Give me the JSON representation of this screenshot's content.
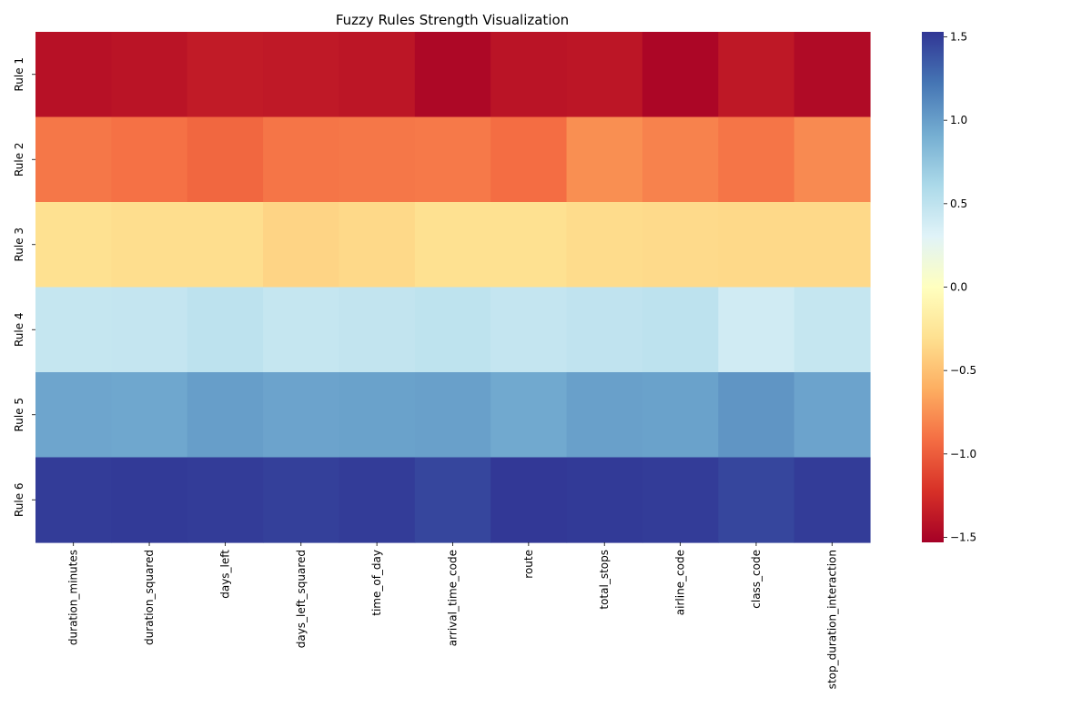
{
  "chart_data": {
    "type": "heatmap",
    "title": "Fuzzy Rules Strength Visualization",
    "xlabel": "",
    "ylabel": "",
    "columns": [
      "duration_minutes",
      "duration_squared",
      "days_left",
      "days_left_squared",
      "time_of_day",
      "arrival_time_code",
      "route",
      "total_stops",
      "airline_code",
      "class_code",
      "stop_duration_interaction"
    ],
    "rows": [
      "Rule 1",
      "Rule 2",
      "Rule 3",
      "Rule 4",
      "Rule 5",
      "Rule 6"
    ],
    "values": [
      [
        -1.42,
        -1.4,
        -1.36,
        -1.37,
        -1.39,
        -1.48,
        -1.4,
        -1.39,
        -1.49,
        -1.38,
        -1.46
      ],
      [
        -0.87,
        -0.9,
        -0.95,
        -0.88,
        -0.87,
        -0.86,
        -0.92,
        -0.76,
        -0.82,
        -0.88,
        -0.78
      ],
      [
        -0.3,
        -0.32,
        -0.32,
        -0.38,
        -0.35,
        -0.3,
        -0.3,
        -0.33,
        -0.34,
        -0.35,
        -0.35
      ],
      [
        0.46,
        0.47,
        0.51,
        0.46,
        0.48,
        0.5,
        0.47,
        0.49,
        0.51,
        0.4,
        0.46
      ],
      [
        0.96,
        0.95,
        1.0,
        0.97,
        0.98,
        0.99,
        0.94,
        0.99,
        0.98,
        1.05,
        0.97
      ],
      [
        1.5,
        1.51,
        1.5,
        1.48,
        1.5,
        1.45,
        1.52,
        1.51,
        1.5,
        1.45,
        1.5
      ]
    ],
    "colormap": "RdYlBu",
    "colorbar": {
      "vmin": -1.53,
      "vmax": 1.53,
      "ticks": [
        -1.5,
        -1.0,
        -0.5,
        0.0,
        0.5,
        1.0,
        1.5
      ],
      "tick_labels": [
        "−1.5",
        "−1.0",
        "−0.5",
        "0.0",
        "0.5",
        "1.0",
        "1.5"
      ]
    }
  }
}
